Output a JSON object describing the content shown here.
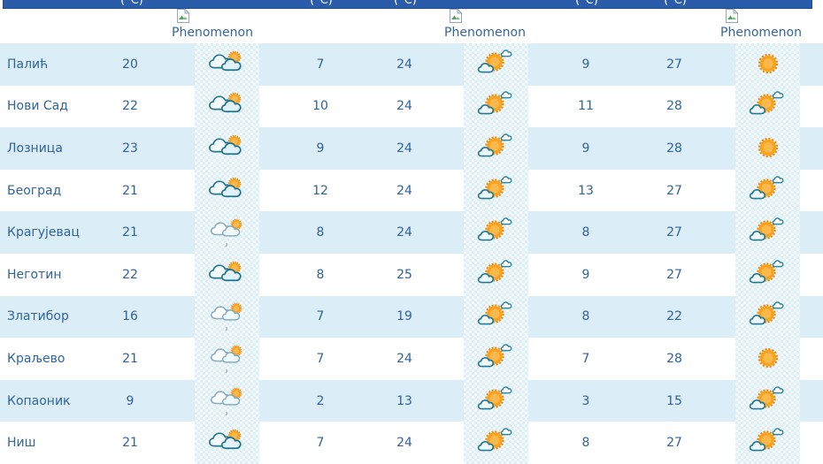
{
  "header": {
    "temp_unit": "(°C)",
    "phenomenon_label": "Phenomenon"
  },
  "icon_names": {
    "cloudy_sun": "mostly-cloudy-with-sun",
    "cloudy_sun_drizzle": "mostly-cloudy-light-rain",
    "sun_cloud": "partly-cloudy",
    "sun": "sunny"
  },
  "colors": {
    "header_bar": "#2a5caa",
    "row_stripe": "#dbedf6",
    "text": "#31639c",
    "phenomenon_text": "#34659d",
    "sun": "#f8a21f"
  },
  "table": {
    "rows": [
      {
        "city": "Палић",
        "t1": "20",
        "i1": "cloudy_sun",
        "t2": "7",
        "t3": "24",
        "i2": "sun_cloud",
        "t4": "9",
        "t5": "27",
        "i3": "sun"
      },
      {
        "city": "Нови Сад",
        "t1": "22",
        "i1": "cloudy_sun",
        "t2": "10",
        "t3": "24",
        "i2": "sun_cloud",
        "t4": "11",
        "t5": "28",
        "i3": "sun_cloud"
      },
      {
        "city": "Лозница",
        "t1": "23",
        "i1": "cloudy_sun",
        "t2": "9",
        "t3": "24",
        "i2": "sun_cloud",
        "t4": "9",
        "t5": "28",
        "i3": "sun"
      },
      {
        "city": "Београд",
        "t1": "21",
        "i1": "cloudy_sun",
        "t2": "12",
        "t3": "24",
        "i2": "sun_cloud",
        "t4": "13",
        "t5": "27",
        "i3": "sun_cloud"
      },
      {
        "city": "Крагујевац",
        "t1": "21",
        "i1": "cloudy_sun_drizzle",
        "t2": "8",
        "t3": "24",
        "i2": "sun_cloud",
        "t4": "8",
        "t5": "27",
        "i3": "sun_cloud"
      },
      {
        "city": "Неготин",
        "t1": "22",
        "i1": "cloudy_sun",
        "t2": "8",
        "t3": "25",
        "i2": "sun_cloud",
        "t4": "9",
        "t5": "27",
        "i3": "sun_cloud"
      },
      {
        "city": "Златибор",
        "t1": "16",
        "i1": "cloudy_sun_drizzle",
        "t2": "7",
        "t3": "19",
        "i2": "sun_cloud",
        "t4": "8",
        "t5": "22",
        "i3": "sun_cloud"
      },
      {
        "city": "Краљево",
        "t1": "21",
        "i1": "cloudy_sun_drizzle",
        "t2": "7",
        "t3": "24",
        "i2": "sun_cloud",
        "t4": "7",
        "t5": "28",
        "i3": "sun"
      },
      {
        "city": "Копаоник",
        "t1": "9",
        "i1": "cloudy_sun_drizzle",
        "t2": "2",
        "t3": "13",
        "i2": "sun_cloud",
        "t4": "3",
        "t5": "15",
        "i3": "sun_cloud"
      },
      {
        "city": "Ниш",
        "t1": "21",
        "i1": "cloudy_sun",
        "t2": "7",
        "t3": "24",
        "i2": "sun_cloud",
        "t4": "8",
        "t5": "27",
        "i3": "sun_cloud"
      }
    ]
  }
}
